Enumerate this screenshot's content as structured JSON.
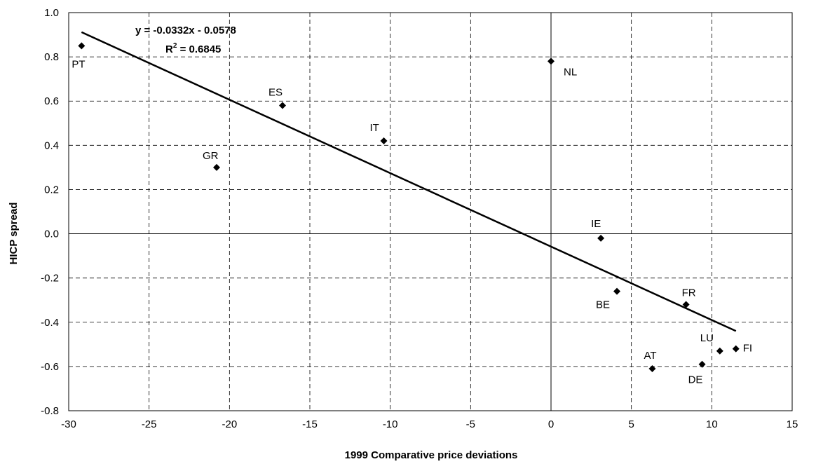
{
  "chart_data": {
    "type": "scatter",
    "title": "",
    "xlabel": "1999 Comparative price deviations",
    "ylabel": "HICP spread",
    "xlim": [
      -30,
      15
    ],
    "ylim": [
      -0.8,
      1.0
    ],
    "x_ticks": [
      -30,
      -25,
      -20,
      -15,
      -10,
      -5,
      0,
      5,
      10,
      15
    ],
    "x_tick_labels": [
      "-30",
      "-25",
      "-20",
      "-15",
      "-10",
      "-5",
      "0",
      "5",
      "10",
      "15"
    ],
    "y_ticks": [
      -0.8,
      -0.6,
      -0.4,
      -0.2,
      0.0,
      0.2,
      0.4,
      0.6,
      0.8,
      1.0
    ],
    "y_tick_labels": [
      "-0.8",
      "-0.6",
      "-0.4",
      "-0.2",
      "0.0",
      "0.2",
      "0.4",
      "0.6",
      "0.8",
      "1.0"
    ],
    "grid": true,
    "marker": "diamond",
    "points": [
      {
        "label": "PT",
        "x": -29.2,
        "y": 0.85
      },
      {
        "label": "GR",
        "x": -20.8,
        "y": 0.3
      },
      {
        "label": "ES",
        "x": -16.7,
        "y": 0.58
      },
      {
        "label": "IT",
        "x": -10.4,
        "y": 0.42
      },
      {
        "label": "NL",
        "x": 0.0,
        "y": 0.78
      },
      {
        "label": "IE",
        "x": 3.1,
        "y": -0.02
      },
      {
        "label": "BE",
        "x": 4.1,
        "y": -0.26
      },
      {
        "label": "FR",
        "x": 8.4,
        "y": -0.32
      },
      {
        "label": "AT",
        "x": 6.3,
        "y": -0.61
      },
      {
        "label": "DE",
        "x": 9.4,
        "y": -0.59
      },
      {
        "label": "LU",
        "x": 10.5,
        "y": -0.53
      },
      {
        "label": "FI",
        "x": 11.5,
        "y": -0.52
      }
    ],
    "trendline": {
      "type": "linear",
      "slope": -0.0332,
      "intercept": -0.0578,
      "x_range": [
        -29.2,
        11.5
      ],
      "equation_text": "y = -0.0332x - 0.0578",
      "r2_prefix": "R",
      "r2_suffix": " = 0.6845",
      "r2_sup": "2"
    }
  }
}
